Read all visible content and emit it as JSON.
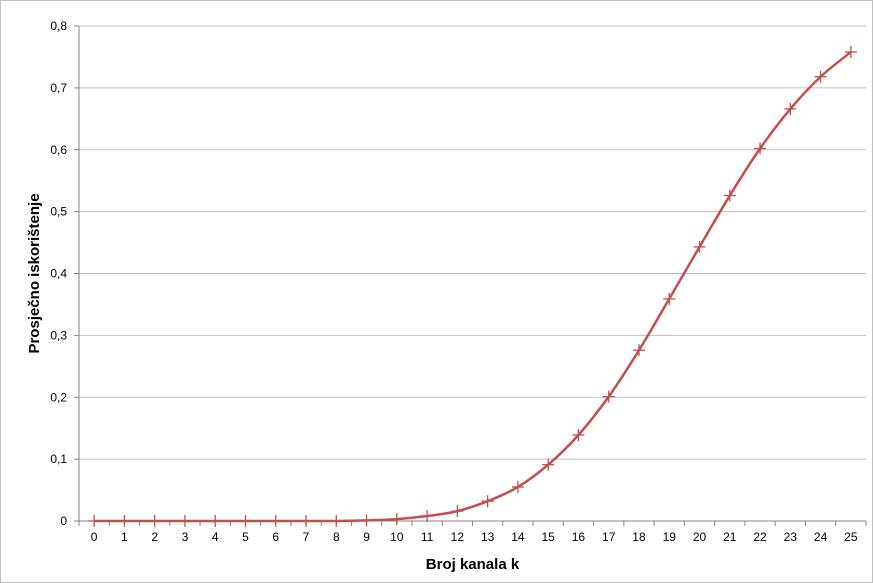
{
  "chart_data": {
    "type": "line",
    "title": "",
    "xlabel": "Broj kanala k",
    "ylabel": "Prosječno iskorištenje",
    "categories": [
      "0",
      "1",
      "2",
      "3",
      "4",
      "5",
      "6",
      "7",
      "8",
      "9",
      "10",
      "11",
      "12",
      "13",
      "14",
      "15",
      "16",
      "17",
      "18",
      "19",
      "20",
      "21",
      "22",
      "23",
      "24",
      "25"
    ],
    "series": [
      {
        "values": [
          0,
          0,
          0,
          0,
          0,
          0,
          0,
          0,
          0,
          0.001,
          0.003,
          0.008,
          0.016,
          0.032,
          0.055,
          0.091,
          0.139,
          0.201,
          0.276,
          0.359,
          0.443,
          0.526,
          0.602,
          0.666,
          0.718,
          0.758
        ],
        "color": "#c0504d",
        "marker": "plus"
      }
    ],
    "ylim": [
      0,
      0.8
    ],
    "yticks": [
      "0",
      "0,1",
      "0,2",
      "0,3",
      "0,4",
      "0,5",
      "0,6",
      "0,7",
      "0,8"
    ],
    "grid": "horizontal",
    "legend": "none"
  }
}
